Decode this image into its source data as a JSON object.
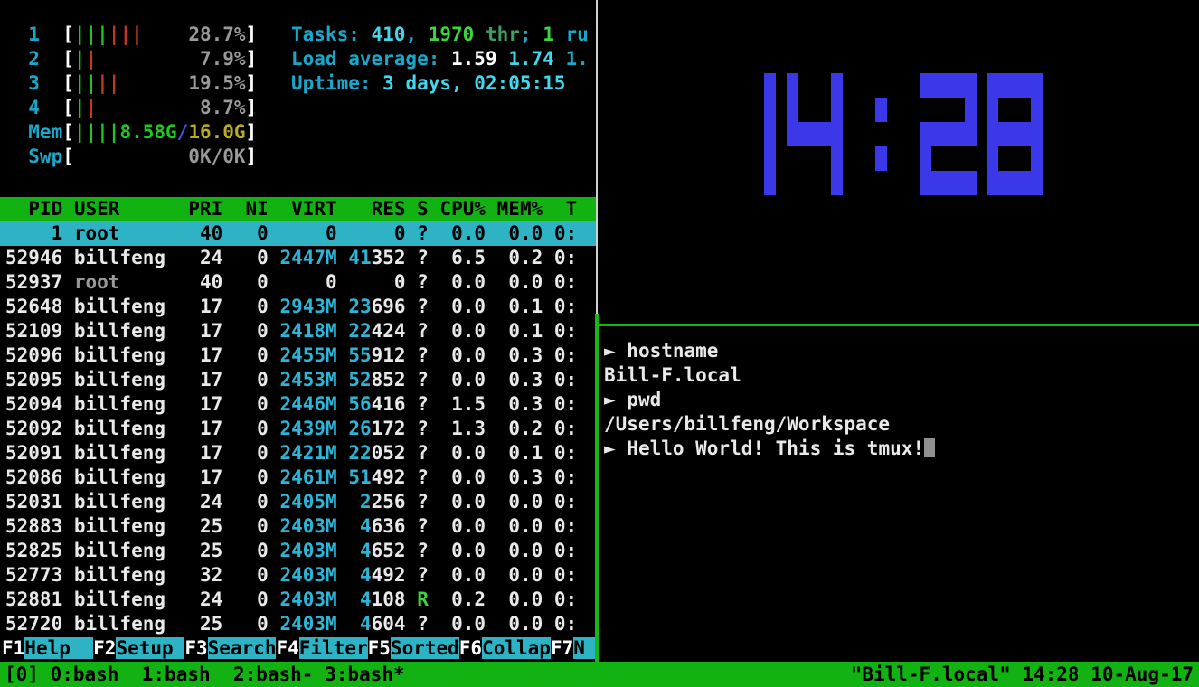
{
  "colors": {
    "background": "#000000",
    "tmux_green": "#12b212",
    "htop_selection_cyan": "#2eb3c4",
    "cyan_label": "#1aa7c9",
    "bright_cyan": "#45d5ec",
    "bar_green": "#1ec81e",
    "bright_green": "#3cd53c",
    "bar_red": "#c23920",
    "gray": "#9a9a9a",
    "yellow": "#b9ab25",
    "blue_slash": "#4053dd",
    "clock_blue": "#3b38ea",
    "border_white": "#cfcfcf",
    "border_green": "#15b615"
  },
  "htop": {
    "cpu_meters": [
      {
        "label": "1",
        "green_bars": 3,
        "red_bars": 3,
        "value": "28.7%"
      },
      {
        "label": "2",
        "green_bars": 1,
        "red_bars": 1,
        "value": "7.9%"
      },
      {
        "label": "3",
        "green_bars": 2,
        "red_bars": 2,
        "value": "19.5%"
      },
      {
        "label": "4",
        "green_bars": 1,
        "red_bars": 1,
        "value": "8.7%"
      }
    ],
    "mem_meter": {
      "label": "Mem",
      "bars": 4,
      "used": "8.58G",
      "slash": "/",
      "total": "16.0G"
    },
    "swp_meter": {
      "label": "Swp",
      "bars": 0,
      "value": "0K/0K"
    },
    "tasks_segments": [
      {
        "t": "Tasks: ",
        "c": "cyan"
      },
      {
        "t": "410",
        "c": "bright_cyan"
      },
      {
        "t": ", ",
        "c": "cyan"
      },
      {
        "t": "1970",
        "c": "bright_green"
      },
      {
        "t": " thr",
        "c": "dim_green"
      },
      {
        "t": "; ",
        "c": "cyan"
      },
      {
        "t": "1",
        "c": "bright_green"
      },
      {
        "t": " ru",
        "c": "cyan"
      }
    ],
    "load_segments": [
      {
        "t": "Load average: ",
        "c": "cyan"
      },
      {
        "t": "1.59",
        "c": "bright_white"
      },
      {
        "t": " ",
        "c": "cyan"
      },
      {
        "t": "1.74",
        "c": "bright_cyan"
      },
      {
        "t": " 1.",
        "c": "cyan"
      }
    ],
    "uptime_segments": [
      {
        "t": "Uptime: ",
        "c": "cyan"
      },
      {
        "t": "3 days, 02:05:15",
        "c": "bright_cyan"
      }
    ],
    "table": {
      "columns": [
        "PID",
        "USER",
        "PRI",
        "NI",
        "VIRT",
        "RES",
        "S",
        "CPU%",
        "MEM%",
        "T"
      ],
      "rows": [
        {
          "pid": "1",
          "user": "root",
          "pri": "40",
          "ni": "0",
          "virt": "0",
          "res": "0",
          "s": "?",
          "cpu": "0.0",
          "mem": "0.0",
          "time": "0:",
          "selected": true
        },
        {
          "pid": "52946",
          "user": "billfeng",
          "pri": "24",
          "ni": "0",
          "virt": "2447M",
          "res": "41352",
          "s": "?",
          "cpu": "6.5",
          "mem": "0.2",
          "time": "0:"
        },
        {
          "pid": "52937",
          "user": "root",
          "pri": "40",
          "ni": "0",
          "virt": "0",
          "res": "0",
          "s": "?",
          "cpu": "0.0",
          "mem": "0.0",
          "time": "0:"
        },
        {
          "pid": "52648",
          "user": "billfeng",
          "pri": "17",
          "ni": "0",
          "virt": "2943M",
          "res": "23696",
          "s": "?",
          "cpu": "0.0",
          "mem": "0.1",
          "time": "0:"
        },
        {
          "pid": "52109",
          "user": "billfeng",
          "pri": "17",
          "ni": "0",
          "virt": "2418M",
          "res": "22424",
          "s": "?",
          "cpu": "0.0",
          "mem": "0.1",
          "time": "0:"
        },
        {
          "pid": "52096",
          "user": "billfeng",
          "pri": "17",
          "ni": "0",
          "virt": "2455M",
          "res": "55912",
          "s": "?",
          "cpu": "0.0",
          "mem": "0.3",
          "time": "0:"
        },
        {
          "pid": "52095",
          "user": "billfeng",
          "pri": "17",
          "ni": "0",
          "virt": "2453M",
          "res": "52852",
          "s": "?",
          "cpu": "0.0",
          "mem": "0.3",
          "time": "0:"
        },
        {
          "pid": "52094",
          "user": "billfeng",
          "pri": "17",
          "ni": "0",
          "virt": "2446M",
          "res": "56416",
          "s": "?",
          "cpu": "1.5",
          "mem": "0.3",
          "time": "0:"
        },
        {
          "pid": "52092",
          "user": "billfeng",
          "pri": "17",
          "ni": "0",
          "virt": "2439M",
          "res": "26172",
          "s": "?",
          "cpu": "1.3",
          "mem": "0.2",
          "time": "0:"
        },
        {
          "pid": "52091",
          "user": "billfeng",
          "pri": "17",
          "ni": "0",
          "virt": "2421M",
          "res": "22052",
          "s": "?",
          "cpu": "0.0",
          "mem": "0.1",
          "time": "0:"
        },
        {
          "pid": "52086",
          "user": "billfeng",
          "pri": "17",
          "ni": "0",
          "virt": "2461M",
          "res": "51492",
          "s": "?",
          "cpu": "0.0",
          "mem": "0.3",
          "time": "0:"
        },
        {
          "pid": "52031",
          "user": "billfeng",
          "pri": "24",
          "ni": "0",
          "virt": "2405M",
          "res": "2256",
          "s": "?",
          "cpu": "0.0",
          "mem": "0.0",
          "time": "0:"
        },
        {
          "pid": "52883",
          "user": "billfeng",
          "pri": "25",
          "ni": "0",
          "virt": "2403M",
          "res": "4636",
          "s": "?",
          "cpu": "0.0",
          "mem": "0.0",
          "time": "0:"
        },
        {
          "pid": "52825",
          "user": "billfeng",
          "pri": "25",
          "ni": "0",
          "virt": "2403M",
          "res": "4652",
          "s": "?",
          "cpu": "0.0",
          "mem": "0.0",
          "time": "0:"
        },
        {
          "pid": "52773",
          "user": "billfeng",
          "pri": "32",
          "ni": "0",
          "virt": "2403M",
          "res": "4492",
          "s": "?",
          "cpu": "0.0",
          "mem": "0.0",
          "time": "0:"
        },
        {
          "pid": "52881",
          "user": "billfeng",
          "pri": "24",
          "ni": "0",
          "virt": "2403M",
          "res": "4108",
          "s": "R",
          "cpu": "0.2",
          "mem": "0.0",
          "time": "0:"
        },
        {
          "pid": "52720",
          "user": "billfeng",
          "pri": "25",
          "ni": "0",
          "virt": "2403M",
          "res": "4604",
          "s": "?",
          "cpu": "0.0",
          "mem": "0.0",
          "time": "0:"
        }
      ]
    },
    "fkeys": [
      {
        "key": "F1",
        "label": "Help"
      },
      {
        "key": "F2",
        "label": "Setup"
      },
      {
        "key": "F3",
        "label": "Search"
      },
      {
        "key": "F4",
        "label": "Filter"
      },
      {
        "key": "F5",
        "label": "Sorted"
      },
      {
        "key": "F6",
        "label": "Collap"
      },
      {
        "key": "F7",
        "label": "N"
      }
    ]
  },
  "clock": {
    "time": "14:28"
  },
  "terminal": {
    "prompt_symbol": "►",
    "lines": [
      {
        "prompt": true,
        "text": "hostname"
      },
      {
        "prompt": false,
        "text": "Bill-F.local"
      },
      {
        "prompt": true,
        "text": "pwd"
      },
      {
        "prompt": false,
        "text": "/Users/billfeng/Workspace"
      },
      {
        "prompt": true,
        "text": "Hello World! This is tmux!",
        "cursor": true
      }
    ]
  },
  "status_bar": {
    "session": "[0]",
    "windows": [
      {
        "label": "0:bash",
        "flag": ""
      },
      {
        "label": "1:bash",
        "flag": ""
      },
      {
        "label": "2:bash",
        "flag": "-"
      },
      {
        "label": "3:bash",
        "flag": "*"
      }
    ],
    "right": "\"Bill-F.local\" 14:28 10-Aug-17"
  }
}
